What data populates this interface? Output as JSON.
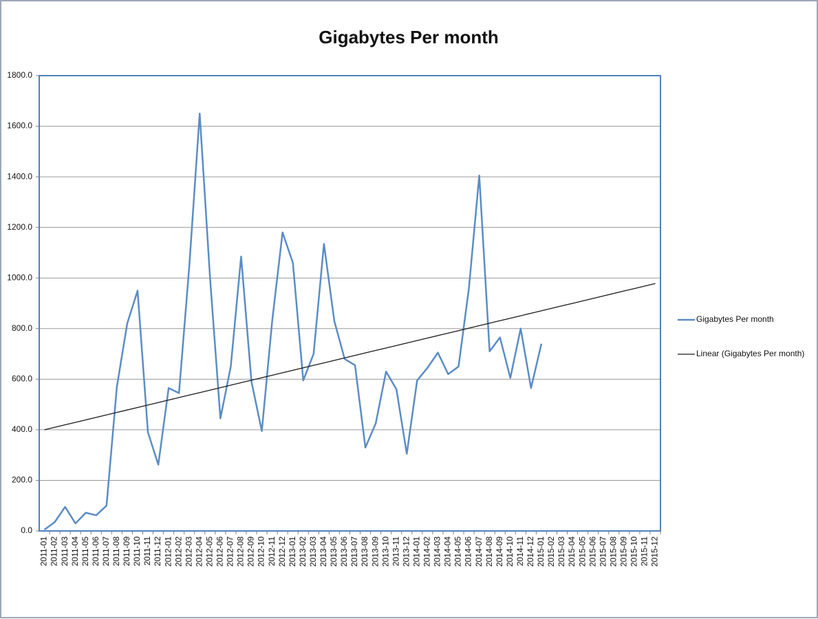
{
  "chart_data": {
    "type": "line",
    "title": "Gigabytes Per month",
    "categories": [
      "2011-01",
      "2011-02",
      "2011-03",
      "2011-04",
      "2011-05",
      "2011-06",
      "2011-07",
      "2011-08",
      "2011-09",
      "2011-10",
      "2011-11",
      "2011-12",
      "2012-01",
      "2012-02",
      "2012-03",
      "2012-04",
      "2012-05",
      "2012-06",
      "2012-07",
      "2012-08",
      "2012-09",
      "2012-10",
      "2012-11",
      "2012-12",
      "2013-01",
      "2013-02",
      "2013-03",
      "2013-04",
      "2013-05",
      "2013-06",
      "2013-07",
      "2013-08",
      "2013-09",
      "2013-10",
      "2013-11",
      "2013-12",
      "2014-01",
      "2014-02",
      "2014-03",
      "2014-04",
      "2014-05",
      "2014-06",
      "2014-07",
      "2014-08",
      "2014-09",
      "2014-10",
      "2014-11",
      "2014-12",
      "2015-01",
      "2015-02",
      "2015-03",
      "2015-04",
      "2015-05",
      "2015-06",
      "2015-07",
      "2015-08",
      "2015-09",
      "2015-10",
      "2015-11",
      "2015-12"
    ],
    "series": [
      {
        "name": "Gigabytes Per month",
        "color": "#5b8cc4",
        "width": 2.5,
        "values": [
          5,
          35,
          95,
          30,
          72,
          62,
          100,
          570,
          820,
          950,
          390,
          262,
          565,
          545,
          1050,
          1650,
          1000,
          445,
          650,
          1085,
          590,
          395,
          830,
          1180,
          1060,
          595,
          700,
          1135,
          830,
          680,
          655,
          330,
          425,
          630,
          560,
          305,
          595,
          645,
          705,
          620,
          650,
          960,
          1405,
          710,
          765,
          605,
          800,
          565,
          740,
          null,
          null,
          null,
          null,
          null,
          null,
          null,
          null,
          null,
          null,
          null
        ]
      },
      {
        "name": "Linear (Gigabytes Per month)",
        "color": "#1a1a1a",
        "width": 1.3,
        "values": [
          400,
          409.8,
          419.6,
          429.4,
          439.2,
          449,
          458.8,
          468.6,
          478.4,
          488.2,
          498,
          507.8,
          517.6,
          527.4,
          537.2,
          547,
          556.8,
          566.6,
          576.4,
          586.2,
          596,
          605.8,
          615.6,
          625.4,
          635.2,
          645,
          654.8,
          664.6,
          674.4,
          684.2,
          694,
          703.8,
          713.6,
          723.4,
          733.2,
          743,
          752.8,
          762.6,
          772.4,
          782.2,
          792,
          801.8,
          811.6,
          821.4,
          831.2,
          841,
          850.8,
          860.6,
          870.4,
          880.2,
          890,
          899.8,
          909.6,
          919.4,
          929.2,
          939,
          948.8,
          958.6,
          968.4,
          978.2
        ]
      }
    ],
    "ylim": [
      0,
      1800
    ],
    "yticks": [
      {
        "value": 0,
        "label": "0.0"
      },
      {
        "value": 200,
        "label": "200.0"
      },
      {
        "value": 400,
        "label": "400.0"
      },
      {
        "value": 600,
        "label": "600.0"
      },
      {
        "value": 800,
        "label": "800.0"
      },
      {
        "value": 1000,
        "label": "1000.0"
      },
      {
        "value": 1200,
        "label": "1200.0"
      },
      {
        "value": 1400,
        "label": "1400.0"
      },
      {
        "value": 1600,
        "label": "1600.0"
      },
      {
        "value": 1800,
        "label": "1800.0"
      }
    ],
    "grid": true,
    "legend": "right"
  }
}
